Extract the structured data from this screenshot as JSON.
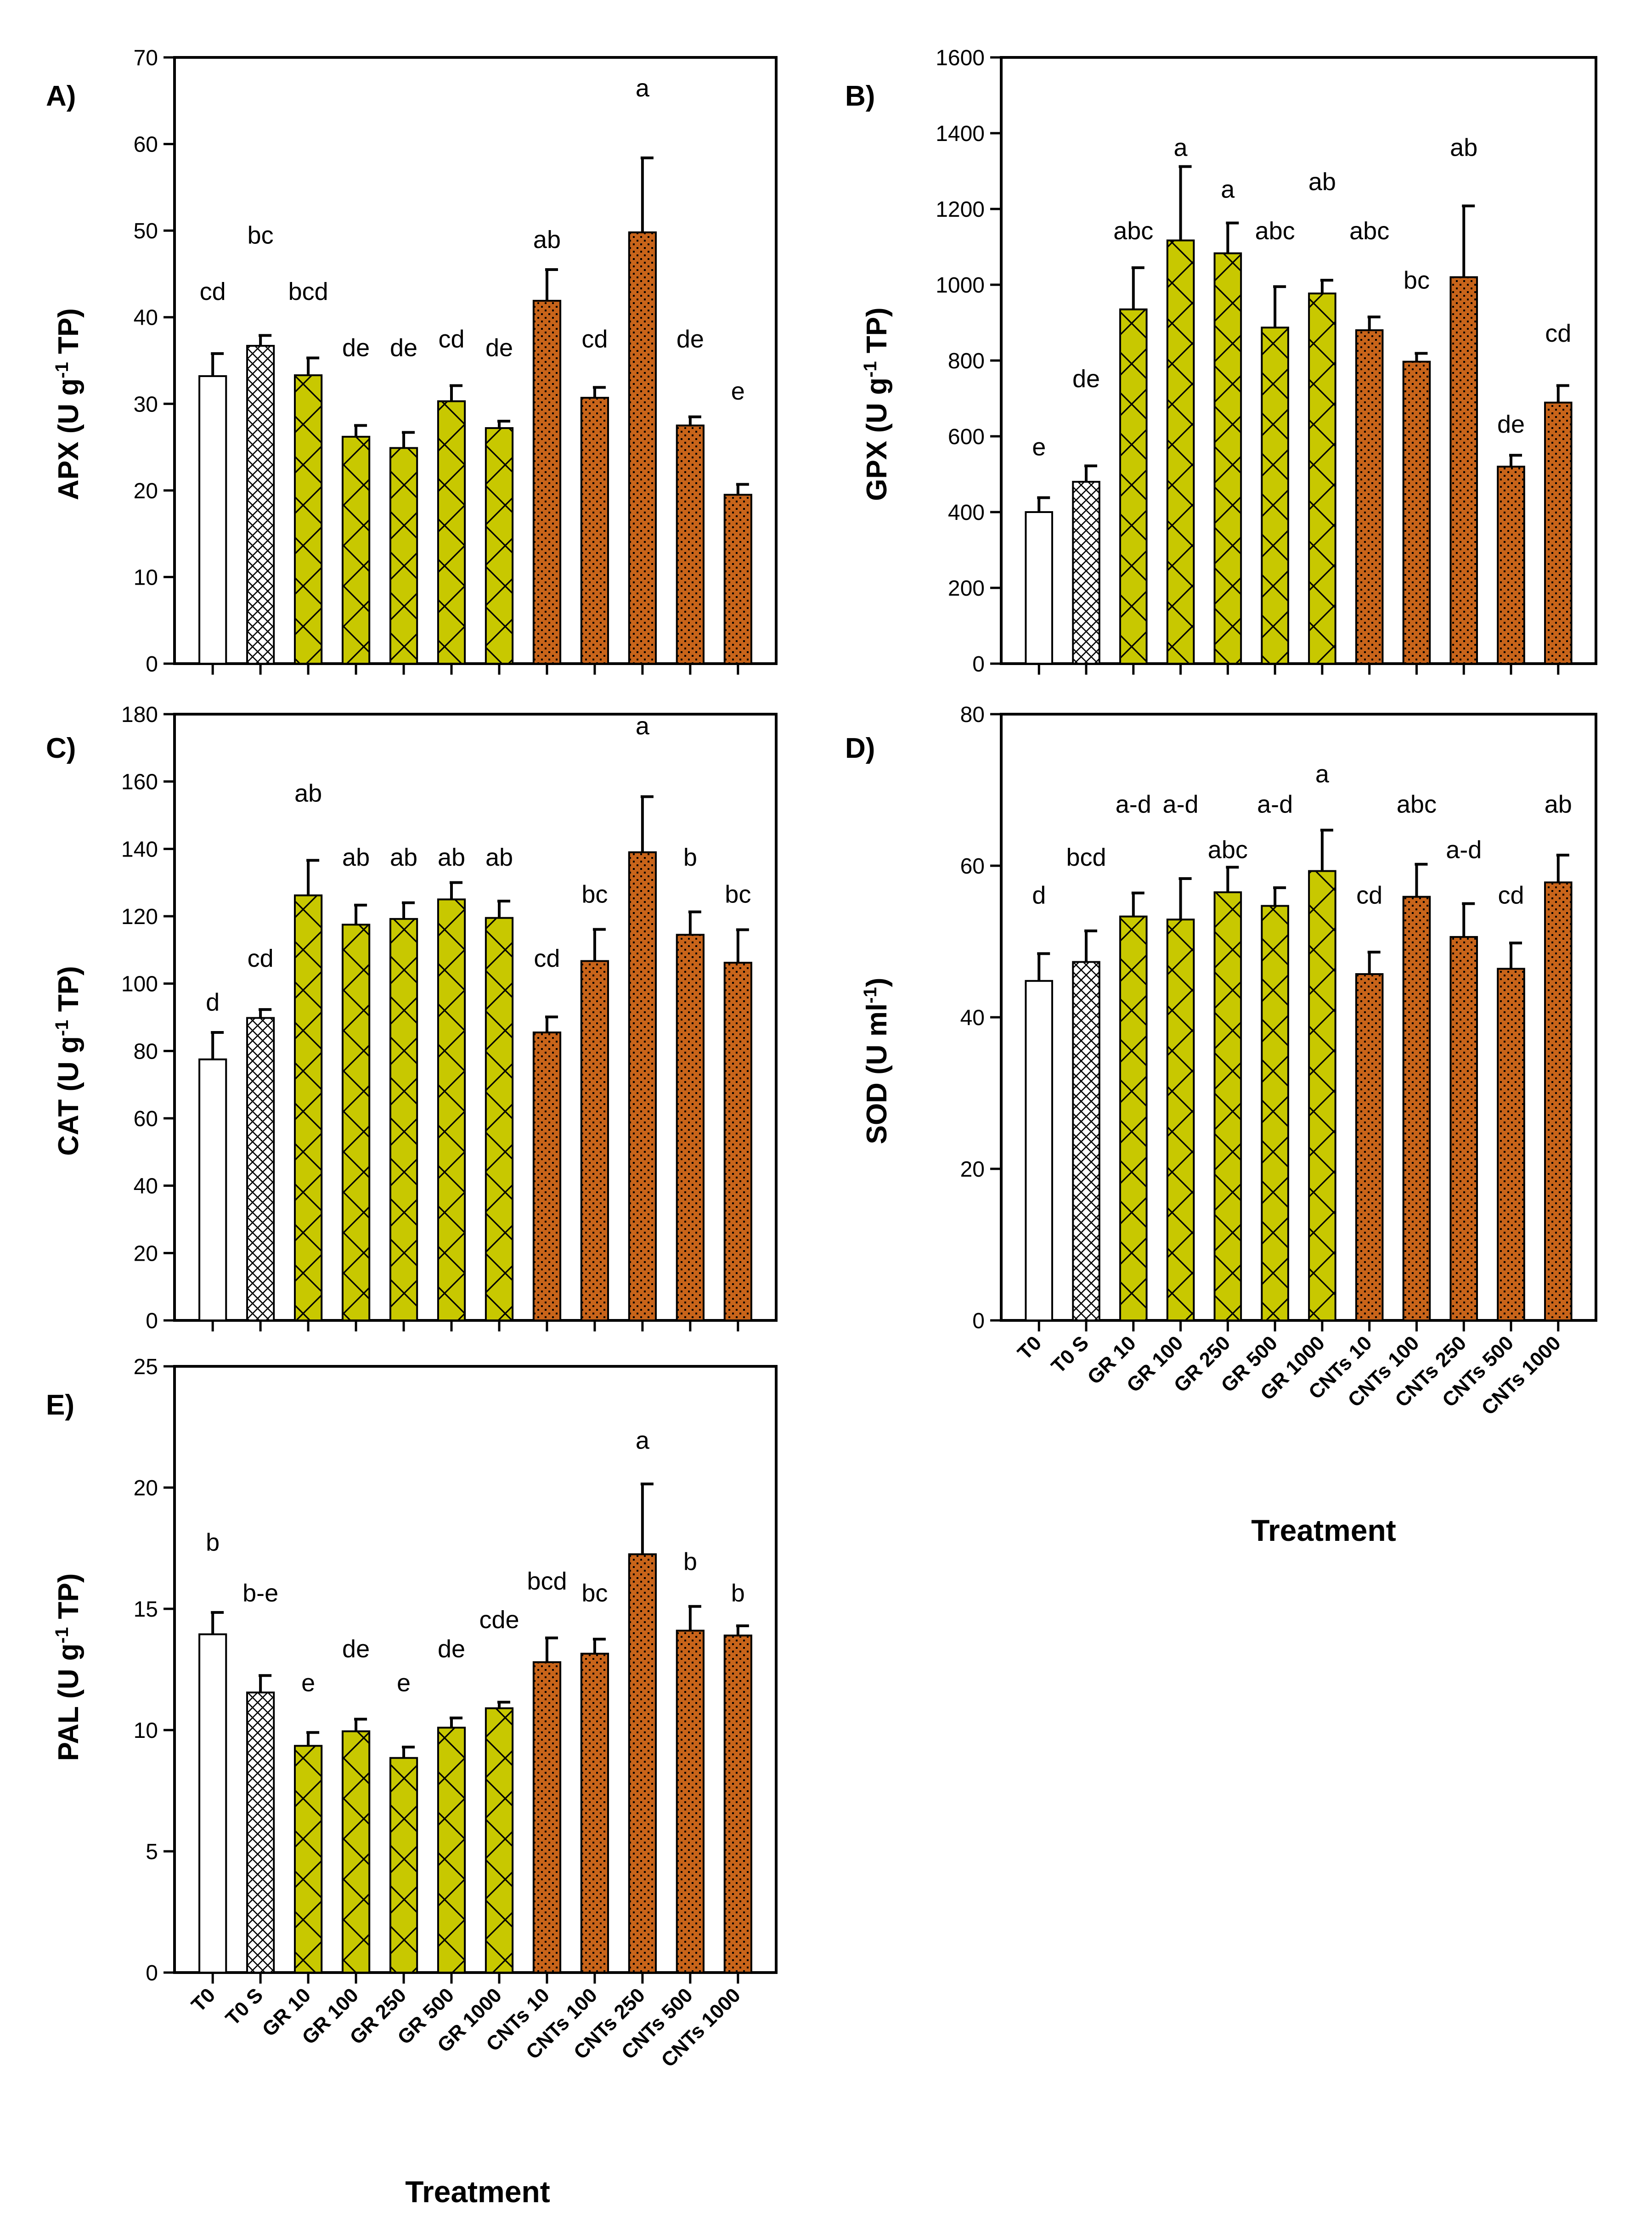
{
  "figure": {
    "categories": [
      "T0",
      "T0 S",
      "GR 10",
      "GR 100",
      "GR 250",
      "GR 500",
      "GR 1000",
      "CNTs 10",
      "CNTs 100",
      "CNTs 250",
      "CNTs 500",
      "CNTs 1000"
    ],
    "groups": [
      "control",
      "control_s",
      "GR",
      "GR",
      "GR",
      "GR",
      "GR",
      "CNTs",
      "CNTs",
      "CNTs",
      "CNTs",
      "CNTs"
    ],
    "colors": {
      "control": "#ffffff",
      "GR": "#c8c800",
      "CNTs": "#c8641a",
      "axis": "#000000"
    },
    "xlabel_c": "Treatment",
    "xlabel_d": "Treatment",
    "xlabel_e": "Treatment"
  },
  "chart_data": [
    {
      "id": "A",
      "type": "bar",
      "panel_label": "A)",
      "ylabel_pre": "APX (U g",
      "ylabel_sup": "-1",
      "ylabel_post": " TP)",
      "ylim": [
        0,
        70
      ],
      "yticks": [
        0,
        10,
        20,
        30,
        40,
        50,
        60,
        70
      ],
      "values": [
        33.2,
        36.7,
        33.3,
        26.2,
        24.9,
        30.3,
        27.2,
        41.9,
        30.7,
        49.8,
        27.5,
        19.5
      ],
      "errors": [
        2.6,
        1.2,
        2.0,
        1.3,
        1.8,
        1.8,
        0.8,
        3.6,
        1.2,
        8.6,
        1.0,
        1.2
      ],
      "letters": [
        "cd",
        "bc",
        "bcd",
        "de",
        "de",
        "cd",
        "de",
        "ab",
        "cd",
        "a",
        "de",
        "e"
      ],
      "letter_y": [
        42,
        48.5,
        42,
        35.5,
        35.5,
        36.5,
        35.5,
        48,
        36.5,
        65.5,
        36.5,
        30.5
      ],
      "show_xlabels": false
    },
    {
      "id": "B",
      "type": "bar",
      "panel_label": "B)",
      "ylabel_pre": "GPX (U g",
      "ylabel_sup": "-1",
      "ylabel_post": " TP)",
      "ylim": [
        0,
        1600
      ],
      "yticks": [
        0,
        200,
        400,
        600,
        800,
        1000,
        1200,
        1400,
        1600
      ],
      "values": [
        400,
        480,
        935,
        1117,
        1083,
        887,
        977,
        880,
        797,
        1020,
        520,
        689
      ],
      "errors": [
        38,
        42,
        110,
        195,
        80,
        108,
        35,
        35,
        22,
        188,
        30,
        45
      ],
      "letters": [
        "e",
        "de",
        "abc",
        "a",
        "a",
        "abc",
        "ab",
        "abc",
        "bc",
        "ab",
        "de",
        "cd"
      ],
      "letter_y": [
        550,
        730,
        1120,
        1340,
        1230,
        1120,
        1250,
        1120,
        990,
        1340,
        610,
        850
      ],
      "show_xlabels": false
    },
    {
      "id": "C",
      "type": "bar",
      "panel_label": "C)",
      "ylabel_pre": "CAT (U g",
      "ylabel_sup": "-1",
      "ylabel_post": " TP)",
      "ylim": [
        0,
        180
      ],
      "yticks": [
        0,
        20,
        40,
        60,
        80,
        100,
        120,
        140,
        160,
        180
      ],
      "values": [
        77.5,
        89.8,
        126.2,
        117.5,
        119.2,
        125.0,
        119.5,
        85.5,
        106.7,
        139.0,
        114.5,
        106.2
      ],
      "errors": [
        8.0,
        2.5,
        10.4,
        5.8,
        4.8,
        5.0,
        5.0,
        4.6,
        9.4,
        16.5,
        6.8,
        9.8
      ],
      "letters": [
        "d",
        "cd",
        "ab",
        "ab",
        "ab",
        "ab",
        "ab",
        "cd",
        "bc",
        "a",
        "b",
        "bc"
      ],
      "letter_y": [
        92,
        105,
        154,
        135,
        135,
        135,
        135,
        105,
        124,
        174,
        135,
        124
      ],
      "show_xlabels": false
    },
    {
      "id": "D",
      "type": "bar",
      "panel_label": "D)",
      "ylabel_pre": "SOD (U ml",
      "ylabel_sup": "-1",
      "ylabel_post": ")",
      "ylim": [
        0,
        80
      ],
      "yticks": [
        0,
        20,
        40,
        60,
        80
      ],
      "values": [
        44.8,
        47.3,
        53.3,
        52.9,
        56.5,
        54.7,
        59.3,
        45.7,
        55.9,
        50.6,
        46.4,
        57.8
      ],
      "errors": [
        3.6,
        4.1,
        3.1,
        5.4,
        3.3,
        2.4,
        5.4,
        2.9,
        4.3,
        4.4,
        3.4,
        3.6
      ],
      "letters": [
        "d",
        "bcd",
        "a-d",
        "a-d",
        "abc",
        "a-d",
        "a",
        "cd",
        "abc",
        "a-d",
        "cd",
        "ab"
      ],
      "letter_y": [
        55,
        60,
        67,
        67,
        61,
        67,
        71,
        55,
        67,
        61,
        55,
        67
      ],
      "show_xlabels": true
    },
    {
      "id": "E",
      "type": "bar",
      "panel_label": "E)",
      "ylabel_pre": "PAL (U g",
      "ylabel_sup": "-1",
      "ylabel_post": " TP)",
      "ylim": [
        0,
        25
      ],
      "yticks": [
        0,
        5,
        10,
        15,
        20,
        25
      ],
      "values": [
        13.95,
        11.55,
        9.35,
        9.95,
        8.85,
        10.1,
        10.9,
        12.8,
        13.15,
        17.25,
        14.1,
        13.9
      ],
      "errors": [
        0.9,
        0.7,
        0.55,
        0.5,
        0.45,
        0.4,
        0.25,
        1.0,
        0.6,
        2.9,
        1.0,
        0.4
      ],
      "letters": [
        "b",
        "b-e",
        "e",
        "de",
        "e",
        "de",
        "cde",
        "bcd",
        "bc",
        "a",
        "b",
        "b"
      ],
      "letter_y": [
        17.4,
        15.3,
        11.6,
        13.0,
        11.6,
        13.0,
        14.2,
        15.8,
        15.3,
        21.6,
        16.6,
        15.3
      ],
      "show_xlabels": true
    }
  ]
}
